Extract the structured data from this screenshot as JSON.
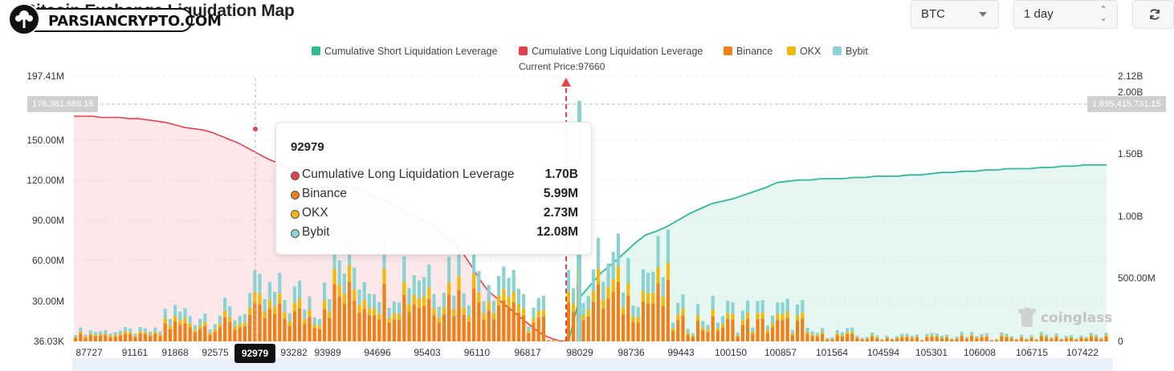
{
  "header": {
    "title": "Bitcoin Exchange Liquidation Map",
    "watermark": "PARSIANCRYPTO.COM"
  },
  "controls": {
    "symbol_select": "BTC",
    "range_select": "1 day",
    "refresh_icon": "refresh-icon"
  },
  "legend": {
    "items": [
      {
        "label": "Cumulative Short Liquidation Leverage",
        "color": "#2fba96"
      },
      {
        "label": "Cumulative Long Liquidation Leverage",
        "color": "#e8404a"
      },
      {
        "label": "Binance",
        "color": "#f07f16"
      },
      {
        "label": "OKX",
        "color": "#f2b90d"
      },
      {
        "label": "Bybit",
        "color": "#8ad3d3"
      }
    ]
  },
  "current_price_label": "Current Price:97660",
  "flags": {
    "left": "176,361,689.16",
    "right": "1,895,415,731.15"
  },
  "tooltip": {
    "title": "92979",
    "rows": [
      {
        "label": "Cumulative Long Liquidation Leverage",
        "value": "1.70B",
        "color": "#e8404a"
      },
      {
        "label": "Binance",
        "value": "5.99M",
        "color": "#f07f16"
      },
      {
        "label": "OKX",
        "value": "2.73M",
        "color": "#f2b90d"
      },
      {
        "label": "Bybit",
        "value": "12.08M",
        "color": "#8ad3d3"
      }
    ]
  },
  "highlight_x": "92979",
  "brand_mark": "coinglass",
  "chart_data": {
    "type": "bar",
    "x_ticks": [
      "87727",
      "91161",
      "91868",
      "92575",
      "92979",
      "93282",
      "93989",
      "94696",
      "95403",
      "96110",
      "96817",
      "98029",
      "98736",
      "99443",
      "100150",
      "100857",
      "101564",
      "104594",
      "105301",
      "106008",
      "106715",
      "107422"
    ],
    "left_axis": {
      "ticks": [
        "36.03K",
        "30.00M",
        "60.00M",
        "90.00M",
        "120.00M",
        "150.00M",
        "197.41M"
      ],
      "range": [
        0,
        197410000
      ]
    },
    "right_axis": {
      "ticks": [
        "0",
        "500.00M",
        "1.00B",
        "1.50B",
        "2.00B",
        "2.12B"
      ],
      "range": [
        0,
        2120000000
      ]
    },
    "current_price": 97660,
    "cumulative_long_B": [
      1.8,
      1.8,
      1.8,
      1.79,
      1.79,
      1.79,
      1.78,
      1.78,
      1.77,
      1.76,
      1.75,
      1.73,
      1.71,
      1.7,
      1.69,
      1.67,
      1.64,
      1.61,
      1.58,
      1.54,
      1.5,
      1.46,
      1.43,
      1.4,
      1.37,
      1.34,
      1.32,
      1.3,
      1.28,
      1.26,
      1.24,
      1.21,
      1.18,
      1.15,
      1.12,
      1.08,
      1.04,
      1.0,
      0.96,
      0.91,
      0.86,
      0.8,
      0.73,
      0.62,
      0.5,
      0.4,
      0.34,
      0.28,
      0.22,
      0.16,
      0.1,
      0.05,
      0.02,
      0.0
    ],
    "cumulative_short_B": [
      0.0,
      0.35,
      0.45,
      0.55,
      0.62,
      0.7,
      0.78,
      0.85,
      0.88,
      0.92,
      0.97,
      1.02,
      1.06,
      1.1,
      1.12,
      1.14,
      1.17,
      1.2,
      1.23,
      1.27,
      1.28,
      1.29,
      1.29,
      1.3,
      1.3,
      1.3,
      1.31,
      1.31,
      1.32,
      1.32,
      1.32,
      1.33,
      1.33,
      1.34,
      1.35,
      1.35,
      1.36,
      1.36,
      1.37,
      1.37,
      1.38,
      1.38,
      1.38,
      1.39,
      1.39,
      1.4,
      1.4,
      1.41,
      1.41,
      1.41
    ],
    "series": [
      {
        "name": "Binance"
      },
      {
        "name": "OKX"
      },
      {
        "name": "Bybit"
      }
    ]
  }
}
